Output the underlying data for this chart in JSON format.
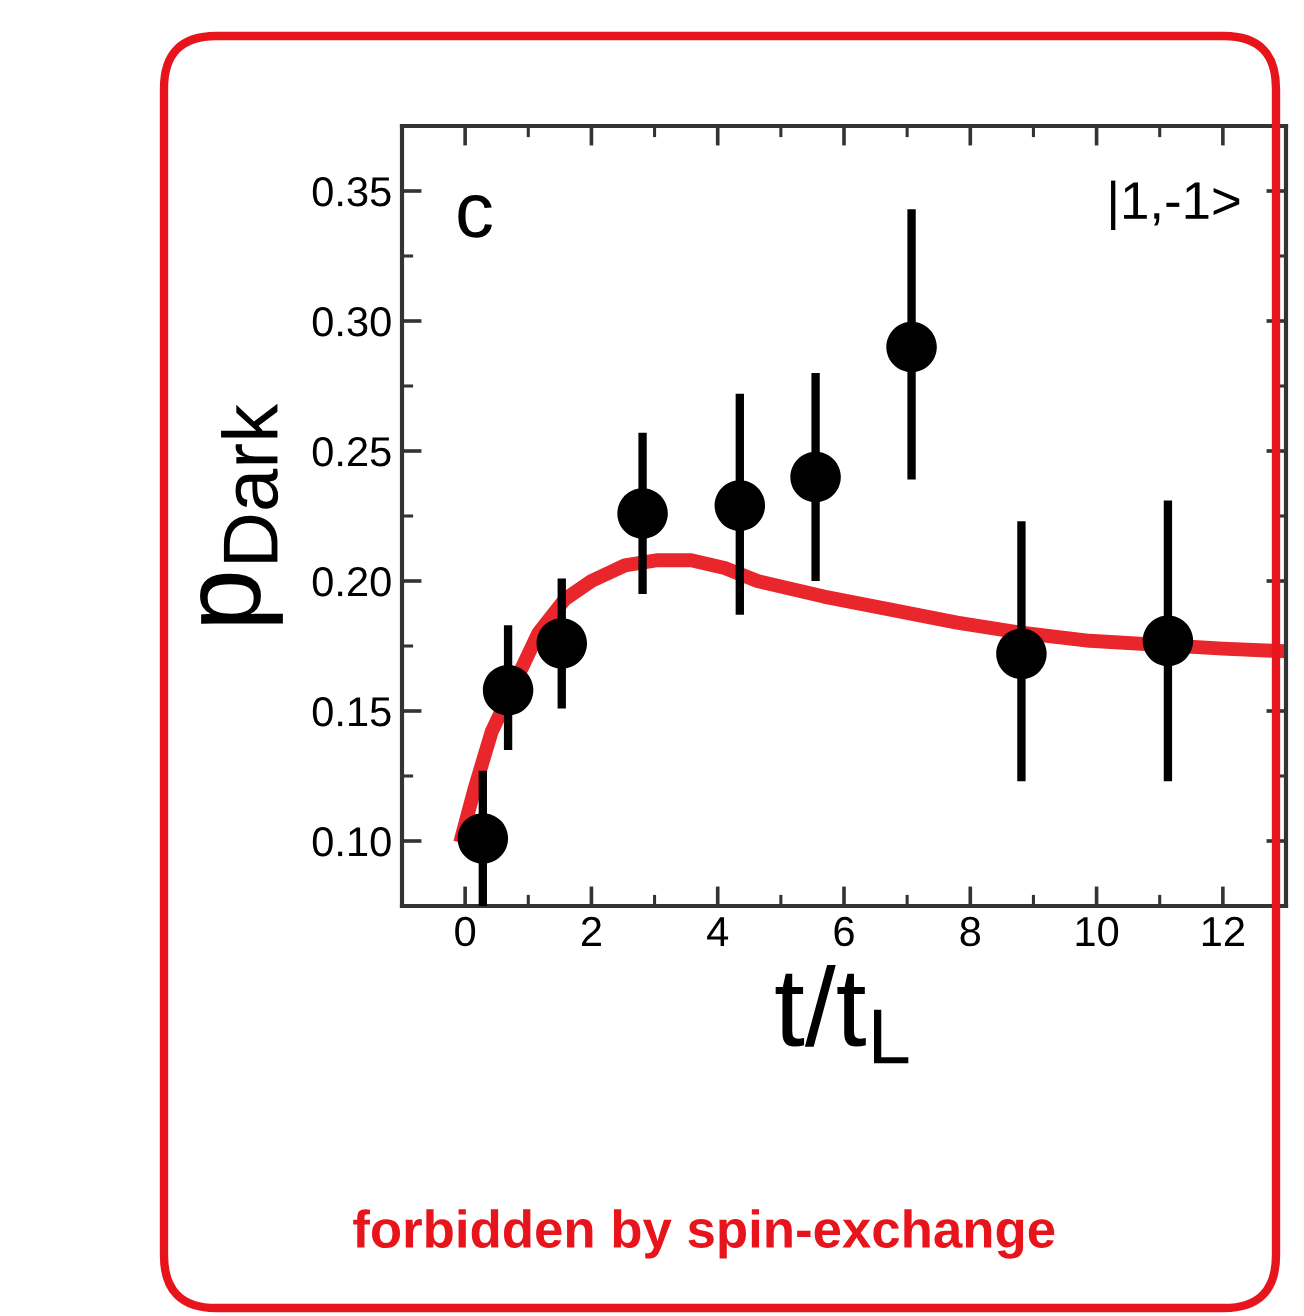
{
  "chart_data": {
    "type": "scatter",
    "xlabel": "t/t$_{L}$",
    "ylabel": "p$_{Dark}$",
    "xlim": [
      -1,
      13
    ],
    "ylim": [
      0.075,
      0.375
    ],
    "xticks": [
      0,
      2,
      4,
      6,
      8,
      10,
      12
    ],
    "yticks": [
      {
        "value": 0.1,
        "label": "0.10"
      },
      {
        "value": 0.15,
        "label": "0.15"
      },
      {
        "value": 0.2,
        "label": "0.20"
      },
      {
        "value": 0.25,
        "label": "0.25"
      },
      {
        "value": 0.3,
        "label": "0.30"
      },
      {
        "value": 0.35,
        "label": "0.35"
      }
    ],
    "grid": false,
    "legend": false,
    "marker": "circle",
    "series": [
      {
        "color": "#000000",
        "x": [
          0.28,
          0.68,
          1.53,
          2.81,
          4.35,
          5.55,
          7.07,
          8.81,
          11.13
        ],
        "values": [
          0.101,
          0.158,
          0.176,
          0.226,
          0.229,
          0.24,
          0.29,
          0.172,
          0.177
        ],
        "errors": [
          [
            0.075,
            0.127
          ],
          [
            0.135,
            0.183
          ],
          [
            0.151,
            0.201
          ],
          [
            0.195,
            0.257
          ],
          [
            0.187,
            0.272
          ],
          [
            0.2,
            0.28
          ],
          [
            0.239,
            0.343
          ],
          [
            0.123,
            0.223
          ],
          [
            0.123,
            0.231
          ]
        ]
      },
      {
        "type": "line",
        "color": "#e8262c",
        "marker": "none",
        "line_style": "solid",
        "x": [
          -0.05,
          0.16,
          0.42,
          1.16,
          1.58,
          2.0,
          2.53,
          3.05,
          3.58,
          4.11,
          4.63,
          5.68,
          6.74,
          7.79,
          8.84,
          9.89,
          12.0,
          12.95
        ],
        "values": [
          0.102,
          0.121,
          0.142,
          0.18,
          0.193,
          0.2,
          0.206,
          0.208,
          0.208,
          0.205,
          0.2,
          0.194,
          0.189,
          0.184,
          0.18,
          0.177,
          0.174,
          0.173
        ]
      }
    ],
    "annotations": [
      "c",
      "|1,-1>",
      "forbidden by spin-exchange"
    ]
  }
}
